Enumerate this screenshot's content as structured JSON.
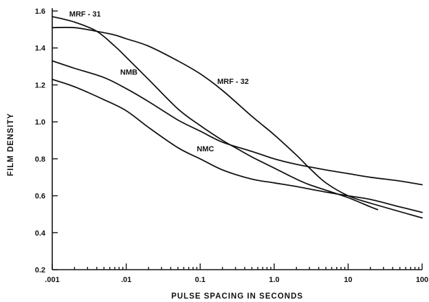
{
  "chart_data": {
    "type": "line",
    "title": "",
    "xlabel": "PULSE SPACING IN SECONDS",
    "ylabel": "FILM DENSITY",
    "x_scale": "log",
    "xlim": [
      0.001,
      100
    ],
    "ylim": [
      0.2,
      1.6
    ],
    "x_ticks": [
      {
        "value": 0.001,
        "label": ".001"
      },
      {
        "value": 0.01,
        "label": ".01"
      },
      {
        "value": 0.1,
        "label": "0.1"
      },
      {
        "value": 1,
        "label": "1.0"
      },
      {
        "value": 10,
        "label": "10"
      },
      {
        "value": 100,
        "label": "100"
      }
    ],
    "y_ticks": [
      {
        "value": 0.2,
        "label": "0.2"
      },
      {
        "value": 0.4,
        "label": "0.4"
      },
      {
        "value": 0.6,
        "label": "0.6"
      },
      {
        "value": 0.8,
        "label": "0.8"
      },
      {
        "value": 1.0,
        "label": "1.0"
      },
      {
        "value": 1.2,
        "label": "1.2"
      },
      {
        "value": 1.4,
        "label": "1.4"
      },
      {
        "value": 1.6,
        "label": "1.6"
      }
    ],
    "grid": false,
    "legend": "none",
    "series": [
      {
        "name": "MRF - 31",
        "label_at": {
          "x": 0.0017,
          "y": 1.585
        },
        "x": [
          0.001,
          0.002,
          0.004,
          0.007,
          0.01,
          0.02,
          0.05,
          0.1,
          0.2,
          0.3,
          0.5,
          1,
          2,
          3,
          5,
          10,
          20,
          25
        ],
        "y": [
          1.57,
          1.54,
          1.49,
          1.41,
          1.35,
          1.23,
          1.07,
          0.98,
          0.9,
          0.86,
          0.81,
          0.75,
          0.69,
          0.66,
          0.63,
          0.59,
          0.54,
          0.525
        ]
      },
      {
        "name": "MRF - 32",
        "label_at": {
          "x": 0.17,
          "y": 1.22
        },
        "x": [
          0.001,
          0.002,
          0.004,
          0.007,
          0.01,
          0.02,
          0.05,
          0.1,
          0.2,
          0.5,
          1,
          2,
          3,
          5,
          10,
          20,
          100
        ],
        "y": [
          1.51,
          1.51,
          1.49,
          1.47,
          1.45,
          1.41,
          1.33,
          1.26,
          1.17,
          1.03,
          0.93,
          0.82,
          0.75,
          0.67,
          0.6,
          0.56,
          0.48
        ]
      },
      {
        "name": "NMB",
        "label_at": {
          "x": 0.0083,
          "y": 1.27
        },
        "x": [
          0.001,
          0.002,
          0.005,
          0.01,
          0.02,
          0.05,
          0.1,
          0.2,
          0.5,
          1,
          2,
          5,
          10,
          20,
          50,
          100
        ],
        "y": [
          1.33,
          1.29,
          1.24,
          1.18,
          1.11,
          1.01,
          0.95,
          0.89,
          0.84,
          0.8,
          0.77,
          0.74,
          0.72,
          0.7,
          0.68,
          0.66
        ]
      },
      {
        "name": "NMC",
        "label_at": {
          "x": 0.09,
          "y": 0.855
        },
        "x": [
          0.001,
          0.002,
          0.005,
          0.01,
          0.02,
          0.05,
          0.1,
          0.2,
          0.5,
          1,
          2,
          5,
          10,
          20,
          50,
          100
        ],
        "y": [
          1.23,
          1.19,
          1.12,
          1.06,
          0.97,
          0.86,
          0.8,
          0.74,
          0.69,
          0.67,
          0.65,
          0.62,
          0.6,
          0.58,
          0.54,
          0.51
        ]
      }
    ]
  }
}
